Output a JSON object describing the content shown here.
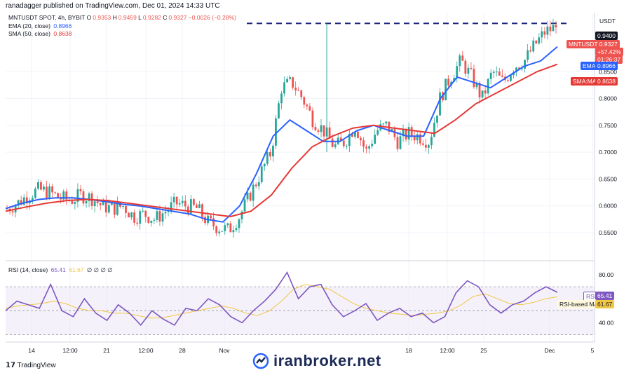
{
  "publisher": "ranadagger published on TradingView.com, Dec 01, 2024 14:33 UTC",
  "legend": {
    "symbol": "MNTUSDT SPOT, 4h, BYBIT",
    "o_label": "O",
    "o": "0.9353",
    "h_label": "H",
    "h": "0.9459",
    "l_label": "L",
    "l": "0.9282",
    "c_label": "C",
    "c": "0.9327",
    "change": "−0.0026 (−0.28%)",
    "ema_label": "EMA (20, close)",
    "ema_value": "0.8966",
    "sma_label": "SMA (50, close)",
    "sma_value": "0.8638",
    "rsi_label": "RSI (14, close)",
    "rsi_value": "65.41",
    "rsi_ma_value": "61.67",
    "rsi_extra": "∅ ∅ ∅ ∅"
  },
  "price_axis": {
    "currency": "USDT",
    "ticks": [
      "0.5500",
      "0.6000",
      "0.6500",
      "0.7000",
      "0.7500",
      "0.8000",
      "0.8500"
    ],
    "resistance_tag": "0.9400",
    "price_tag": {
      "symbol": "MNTUSDT",
      "price": "0.9327",
      "change": "+57.42%",
      "countdown": "01:26:37"
    },
    "ema_tag": {
      "label": "EMA",
      "value": "0.8966"
    },
    "sma_tag": {
      "label": "SMA:MA",
      "value": "0.8638"
    }
  },
  "rsi_axis": {
    "ticks": [
      "80.00",
      "40.00"
    ],
    "rsi_tag": {
      "label": "RSI",
      "value": "65.41"
    },
    "ma_tag": {
      "label": "RSI-based MA",
      "value": "61.67"
    }
  },
  "time_axis": {
    "ticks": [
      "14",
      "12:00",
      "21",
      "12:00",
      "28",
      "Nov",
      "18",
      "12:00",
      "25",
      "Dec",
      "5"
    ]
  },
  "footer": {
    "tv_logo": "TradingView",
    "watermark": "iranbroker.net"
  },
  "colors": {
    "up": "#26a69a",
    "down": "#ef5350",
    "ema": "#2962ff",
    "sma": "#e53935",
    "rsi": "#7e57c2",
    "rsi_ma": "#f2c744",
    "resistance": "#1a237e",
    "rsi_band": "#ede7f6"
  },
  "chart_data": {
    "type": "candlestick",
    "timeframe": "4h",
    "ylim": [
      0.52,
      0.96
    ],
    "resistance_level": 0.94,
    "description_series": {
      "close_path": [
        0.595,
        0.605,
        0.62,
        0.63,
        0.625,
        0.615,
        0.61,
        0.62,
        0.615,
        0.6,
        0.595,
        0.6,
        0.58,
        0.585,
        0.575,
        0.59,
        0.605,
        0.6,
        0.595,
        0.57,
        0.56,
        0.555,
        0.58,
        0.62,
        0.66,
        0.7,
        0.82,
        0.83,
        0.8,
        0.76,
        0.74,
        0.71,
        0.72,
        0.75,
        0.7,
        0.74,
        0.75,
        0.72,
        0.735,
        0.73,
        0.72,
        0.8,
        0.84,
        0.87,
        0.84,
        0.8,
        0.85,
        0.83,
        0.86,
        0.87,
        0.9,
        0.925,
        0.9327
      ],
      "ema20_path": [
        0.595,
        0.605,
        0.612,
        0.615,
        0.615,
        0.612,
        0.608,
        0.603,
        0.6,
        0.595,
        0.59,
        0.585,
        0.575,
        0.57,
        0.6,
        0.66,
        0.73,
        0.76,
        0.74,
        0.72,
        0.72,
        0.74,
        0.75,
        0.74,
        0.73,
        0.73,
        0.8,
        0.84,
        0.83,
        0.82,
        0.84,
        0.86,
        0.87,
        0.8966
      ],
      "sma50_path": [
        0.59,
        0.598,
        0.605,
        0.61,
        0.612,
        0.61,
        0.605,
        0.6,
        0.595,
        0.59,
        0.585,
        0.58,
        0.59,
        0.62,
        0.67,
        0.71,
        0.73,
        0.745,
        0.75,
        0.745,
        0.74,
        0.735,
        0.76,
        0.79,
        0.81,
        0.83,
        0.85,
        0.8638
      ],
      "rsi_path": [
        50,
        58,
        55,
        52,
        72,
        50,
        45,
        60,
        48,
        42,
        55,
        48,
        38,
        50,
        43,
        38,
        52,
        50,
        60,
        55,
        45,
        40,
        50,
        58,
        68,
        82,
        60,
        70,
        72,
        55,
        45,
        50,
        56,
        42,
        48,
        52,
        45,
        48,
        40,
        45,
        65,
        75,
        70,
        55,
        48,
        55,
        58,
        65,
        70,
        65.41
      ],
      "rsi_ma_path": [
        52,
        54,
        55,
        56,
        58,
        56,
        52,
        50,
        50,
        48,
        48,
        46,
        44,
        44,
        46,
        48,
        50,
        52,
        54,
        52,
        48,
        46,
        50,
        58,
        68,
        72,
        70,
        68,
        62,
        56,
        52,
        50,
        48,
        47,
        46,
        47,
        48,
        50,
        55,
        62,
        64,
        60,
        56,
        55,
        57,
        60,
        61.67
      ],
      "rsi_ylim": [
        25,
        90
      ],
      "rsi_bands": [
        70,
        50,
        30
      ]
    }
  }
}
